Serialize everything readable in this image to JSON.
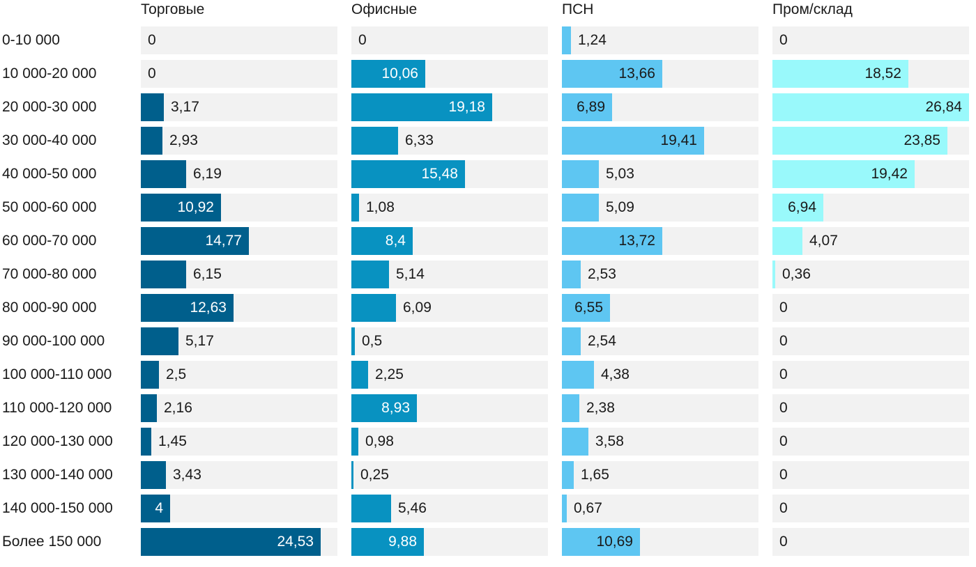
{
  "chart_data": {
    "type": "bar",
    "categories": [
      "0-10 000",
      "10 000-20 000",
      "20 000-30 000",
      "30 000-40 000",
      "40 000-50 000",
      "50 000-60 000",
      "60 000-70 000",
      "70 000-80 000",
      "80 000-90 000",
      "90 000-100 000",
      "100 000-110 000",
      "110 000-120 000",
      "120 000-130 000",
      "130 000-140 000",
      "140 000-150 000",
      "Более 150 000"
    ],
    "series": [
      {
        "name": "Торговые",
        "color": "#005f8c",
        "values": [
          0,
          0,
          3.17,
          2.93,
          6.19,
          10.92,
          14.77,
          6.15,
          12.63,
          5.17,
          2.5,
          2.16,
          1.45,
          3.43,
          4,
          24.53
        ],
        "labels": [
          "0",
          "0",
          "3,17",
          "2,93",
          "6,19",
          "10,92",
          "14,77",
          "6,15",
          "12,63",
          "5,17",
          "2,5",
          "2,16",
          "1,45",
          "3,43",
          "4",
          "24,53"
        ]
      },
      {
        "name": "Офисные",
        "color": "#0892c1",
        "values": [
          0,
          10.06,
          19.18,
          6.33,
          15.48,
          1.08,
          8.4,
          5.14,
          6.09,
          0.5,
          2.25,
          8.93,
          0.98,
          0.25,
          5.46,
          9.88
        ],
        "labels": [
          "0",
          "10,06",
          "19,18",
          "6,33",
          "15,48",
          "1,08",
          "8,4",
          "5,14",
          "6,09",
          "0,5",
          "2,25",
          "8,93",
          "0,98",
          "0,25",
          "5,46",
          "9,88"
        ]
      },
      {
        "name": "ПСН",
        "color": "#5ec6f2",
        "values": [
          1.24,
          13.66,
          6.89,
          19.41,
          5.03,
          5.09,
          13.72,
          2.53,
          6.55,
          2.54,
          4.38,
          2.38,
          3.58,
          1.65,
          0.67,
          10.69
        ],
        "labels": [
          "1,24",
          "13,66",
          "6,89",
          "19,41",
          "5,03",
          "5,09",
          "13,72",
          "2,53",
          "6,55",
          "2,54",
          "4,38",
          "2,38",
          "3,58",
          "1,65",
          "0,67",
          "10,69"
        ]
      },
      {
        "name": "Пром/склад",
        "color": "#99f9fb",
        "values": [
          0,
          18.52,
          26.84,
          23.85,
          19.42,
          6.94,
          4.07,
          0.36,
          0,
          0,
          0,
          0,
          0,
          0,
          0,
          0
        ],
        "labels": [
          "0",
          "18,52",
          "26,84",
          "23,85",
          "19,42",
          "6,94",
          "4,07",
          "0,36",
          "0",
          "0",
          "0",
          "0",
          "0",
          "0",
          "0",
          "0"
        ]
      }
    ],
    "title": "",
    "xlabel": "",
    "ylabel": "",
    "grid": false,
    "legend": "column headers on top"
  }
}
